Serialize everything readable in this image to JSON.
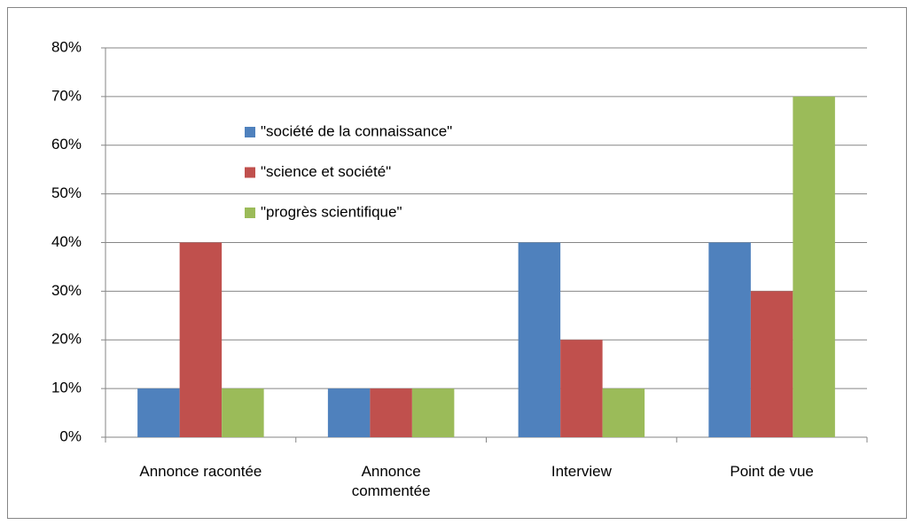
{
  "chart_data": {
    "type": "bar",
    "categories": [
      "Annonce racontée",
      "Annonce commentée",
      "Interview",
      "Point de vue"
    ],
    "series": [
      {
        "name": "\"société de la connaissance\"",
        "color": "#4f81bd",
        "values": [
          10,
          10,
          40,
          40
        ]
      },
      {
        "name": "\"science et société\"",
        "color": "#c0504d",
        "values": [
          40,
          10,
          20,
          30
        ]
      },
      {
        "name": "\"progrès scientifique\"",
        "color": "#9bbb59",
        "values": [
          10,
          10,
          10,
          70
        ]
      }
    ],
    "ylim": [
      0,
      80
    ],
    "yticks": [
      {
        "value": 0,
        "label": "0%"
      },
      {
        "value": 10,
        "label": "10%"
      },
      {
        "value": 20,
        "label": "20%"
      },
      {
        "value": 30,
        "label": "30%"
      },
      {
        "value": 40,
        "label": "40%"
      },
      {
        "value": 50,
        "label": "50%"
      },
      {
        "value": 60,
        "label": "60%"
      },
      {
        "value": 70,
        "label": "70%"
      },
      {
        "value": 80,
        "label": "80%"
      }
    ],
    "grid": true,
    "legend": "upper-left"
  }
}
